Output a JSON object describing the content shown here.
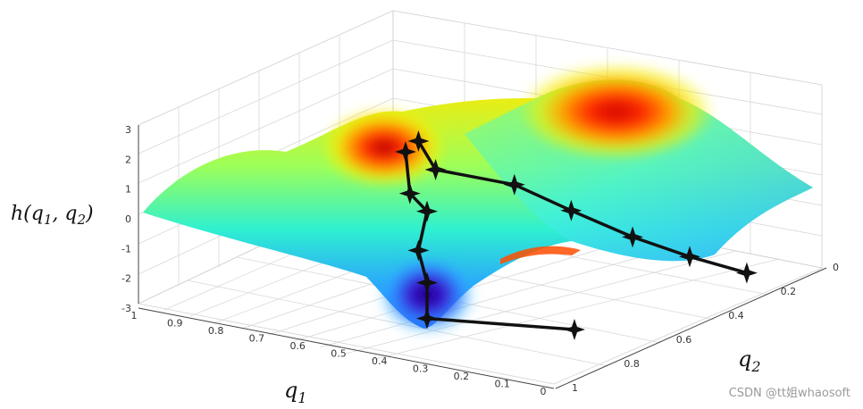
{
  "chart_data": {
    "type": "surface",
    "zlabel": "h(q1, q2)",
    "xlabel": "q1",
    "ylabel": "q2",
    "z_ticks": [
      "3",
      "2",
      "1",
      "0",
      "-1",
      "-2",
      "-3"
    ],
    "q1_ticks": [
      "1",
      "0.9",
      "0.8",
      "0.7",
      "0.6",
      "0.5",
      "0.4",
      "0.3",
      "0.2",
      "0.1",
      "0"
    ],
    "q2_ticks": [
      "0",
      "0.2",
      "0.4",
      "0.6",
      "0.8",
      "1"
    ],
    "zlim": [
      -3,
      3
    ],
    "paths": [
      {
        "points": [
          {
            "q1": 0.35,
            "q2": 0.05,
            "h": 2.0
          },
          {
            "q1": 0.34,
            "q2": 0.1,
            "h": 0.8
          },
          {
            "q1": 0.3,
            "q2": 0.15,
            "h": 0.3
          },
          {
            "q1": 0.32,
            "q2": 0.25,
            "h": -0.8
          },
          {
            "q1": 0.3,
            "q2": 0.35,
            "h": -1.7
          },
          {
            "q1": 0.3,
            "q2": 0.45,
            "h": -2.7
          },
          {
            "q1": 0.3,
            "q2": 0.5,
            "h": -3.0
          }
        ]
      },
      {
        "points": [
          {
            "q1": 0.32,
            "q2": 0.02,
            "h": 2.3
          },
          {
            "q1": 0.28,
            "q2": 0.1,
            "h": 1.5
          },
          {
            "q1": 0.22,
            "q2": 0.18,
            "h": 1.1
          },
          {
            "q1": 0.17,
            "q2": 0.3,
            "h": 0.4
          },
          {
            "q1": 0.13,
            "q2": 0.45,
            "h": -0.3
          },
          {
            "q1": 0.1,
            "q2": 0.6,
            "h": -0.8
          },
          {
            "q1": 0.07,
            "q2": 0.75,
            "h": -1.2
          }
        ]
      }
    ],
    "colormap": "jet"
  },
  "watermark": "CSDN @tt姐whaosoft"
}
